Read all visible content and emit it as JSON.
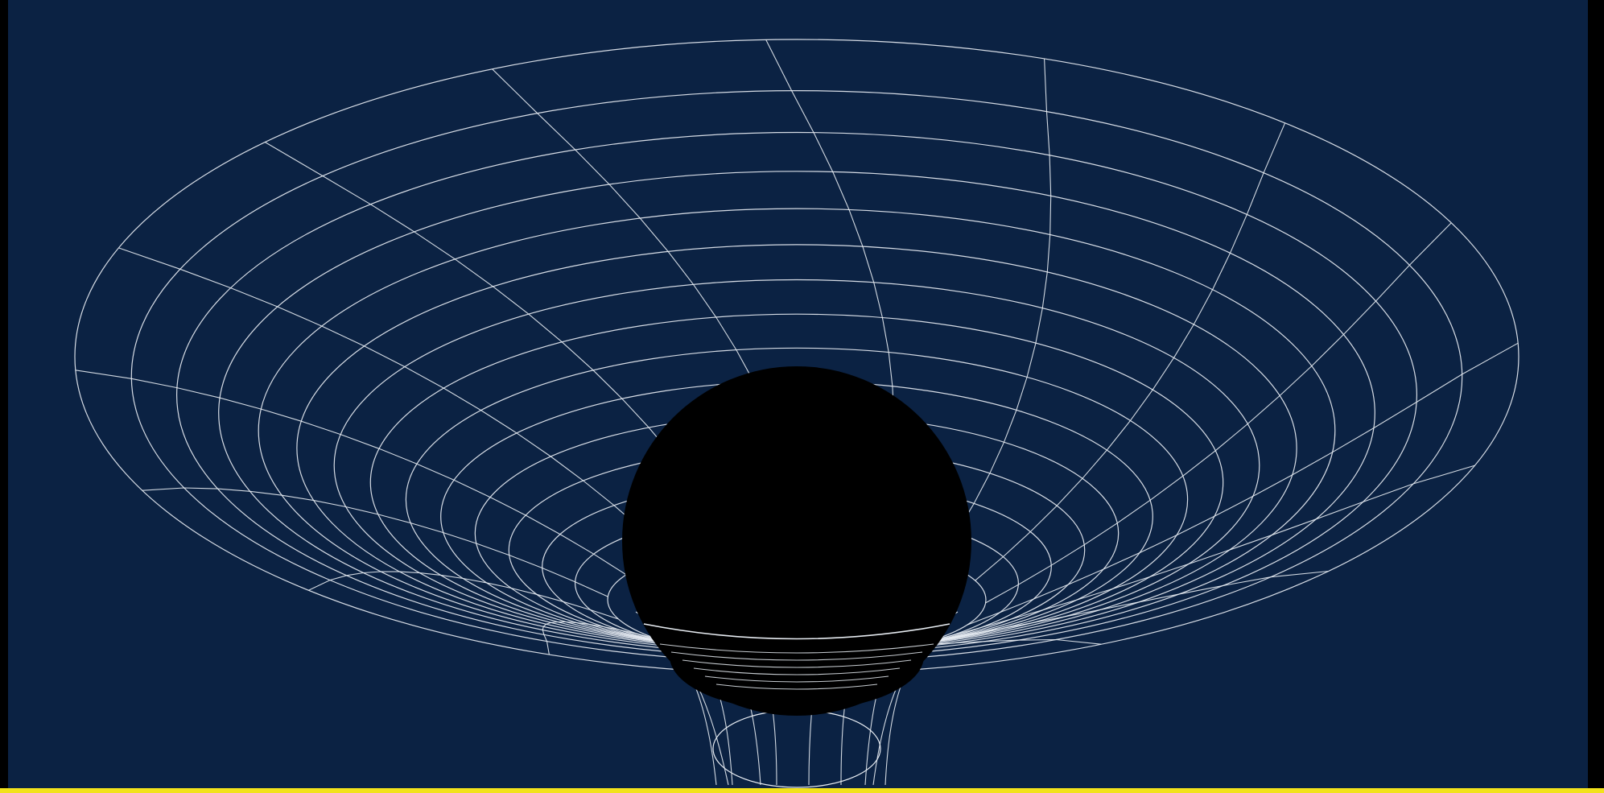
{
  "scene": {
    "background_color": "#0B2243",
    "frame_color": "#000000",
    "highlight_bar_color": "#F2E21C",
    "grid_line_color": "#E8EDF3",
    "hole_color": "#000000",
    "funnel_ring_count": 15,
    "radial_line_count": 16
  }
}
